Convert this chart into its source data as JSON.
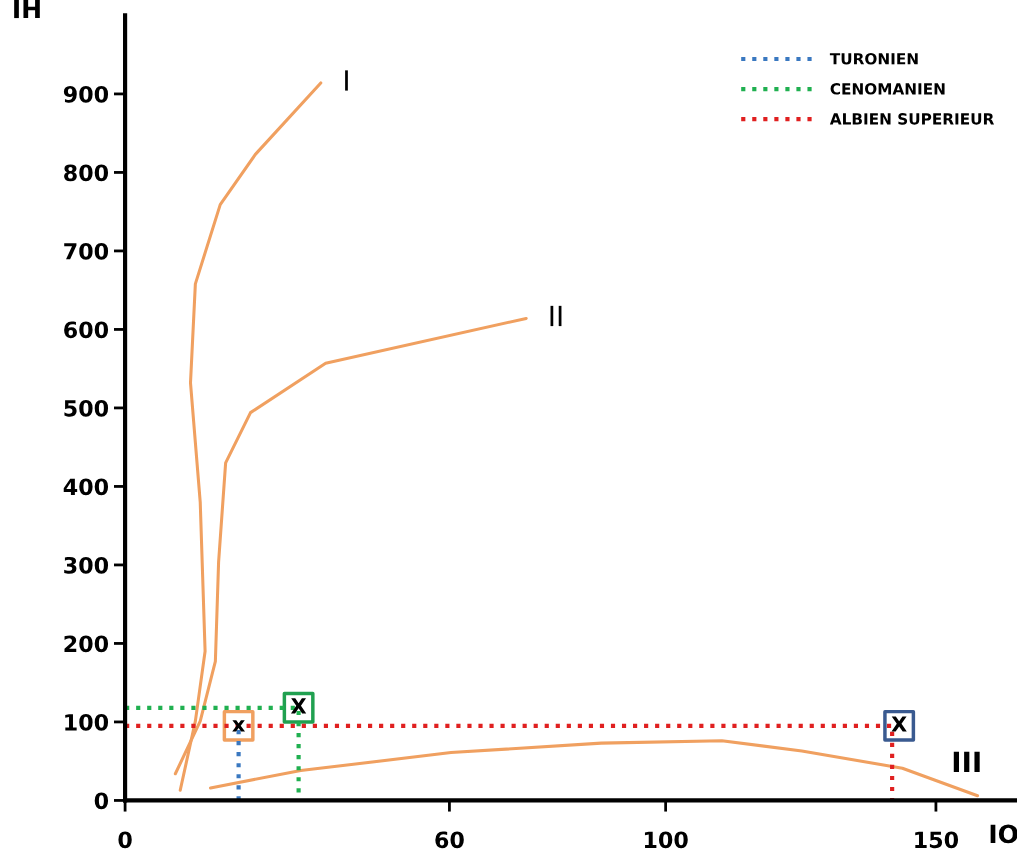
{
  "chart_data": {
    "type": "line",
    "xlabel": "IO",
    "ylabel": "IH",
    "xlim": [
      0,
      165
    ],
    "xticks": [
      0,
      60,
      100,
      150
    ],
    "ylim": [
      0,
      1000
    ],
    "yticks": [
      0,
      100,
      200,
      300,
      400,
      500,
      600,
      700,
      800,
      900
    ],
    "grid": false,
    "legend": "top right",
    "marker": "none",
    "series": [
      {
        "name": "I",
        "color": "#f0a060",
        "line_style": "solid",
        "x": [
          10.2,
          13.0,
          14.8,
          13.9,
          12.1,
          13.0,
          17.6,
          24.1,
          36.2
        ],
        "values": [
          13,
          101,
          190,
          380,
          532,
          658,
          759,
          823,
          914
        ]
      },
      {
        "name": "II",
        "color": "#f0a060",
        "line_style": "solid",
        "x": [
          9.3,
          13.9,
          16.7,
          17.3,
          18.6,
          23.2,
          37.1,
          74.2
        ],
        "values": [
          34,
          101,
          177,
          304,
          430,
          494,
          557,
          614
        ]
      },
      {
        "name": "III",
        "color": "#f0a060",
        "line_style": "solid",
        "x": [
          15.8,
          32.5,
          60.3,
          88.1,
          110.4,
          125.2,
          143.8,
          157.7
        ],
        "values": [
          16,
          38,
          61,
          73,
          76,
          63,
          41,
          6
        ]
      },
      {
        "name": "TURONIEN",
        "color": "#3a78c0",
        "line_style": "dotted",
        "x": [
          21.0,
          21.0
        ],
        "values": [
          0,
          95
        ]
      },
      {
        "name": "CENOMANIEN",
        "color": "#20b050",
        "line_style": "dotted",
        "x": [
          0,
          32.1,
          32.1
        ],
        "values": [
          118,
          118,
          0
        ]
      },
      {
        "name": "ALBIEN SUPERIEUR",
        "color": "#e02020",
        "line_style": "dotted",
        "x": [
          0,
          141.9,
          141.9
        ],
        "values": [
          95,
          95,
          0
        ]
      },
      {
        "type": "scatter",
        "marker": "square",
        "colors": [
          "#f0a060",
          "#20a050",
          "#3a5a90"
        ],
        "x": [
          21.0,
          32.1,
          143.2
        ],
        "values": [
          95,
          118,
          95
        ]
      }
    ],
    "annotations": [
      {
        "text": "x",
        "x": 21.0,
        "y": 95
      },
      {
        "text": "X",
        "x": 32.1,
        "y": 118
      },
      {
        "text": "X",
        "x": 143.2,
        "y": 95
      }
    ]
  }
}
